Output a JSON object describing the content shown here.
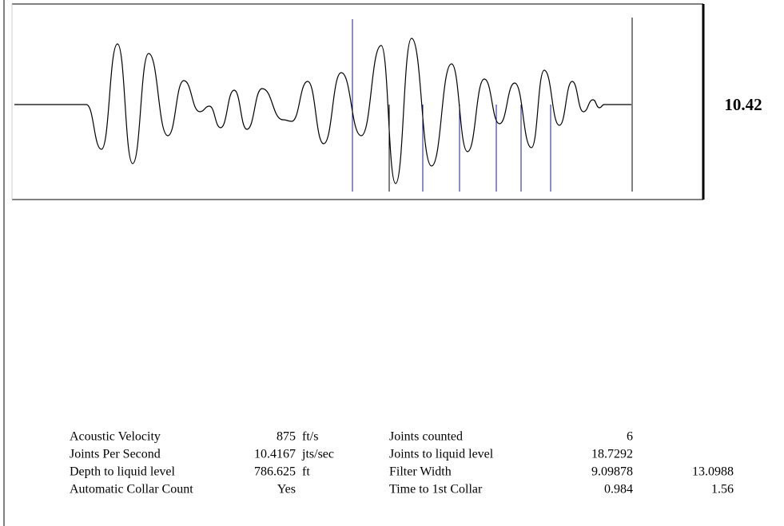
{
  "display_value": "10.42",
  "table": {
    "rows": [
      {
        "label": "Acoustic Velocity",
        "value": "875",
        "unit": "ft/s",
        "label2": "Joints counted",
        "value2": "6"
      },
      {
        "label": "Joints Per Second",
        "value": "10.4167",
        "unit": "jts/sec",
        "label2": "Joints to liquid level",
        "value2": "18.7292"
      },
      {
        "label": "Depth to liquid level",
        "value": "786.625",
        "unit": "ft",
        "label2": "Filter Width",
        "value2": "9.09878",
        "value3": "13.0988"
      },
      {
        "label": "Automatic Collar Count",
        "value": "Yes",
        "label2": "Time to 1st Collar",
        "value2": "0.984",
        "value3": "1.56"
      }
    ]
  }
}
